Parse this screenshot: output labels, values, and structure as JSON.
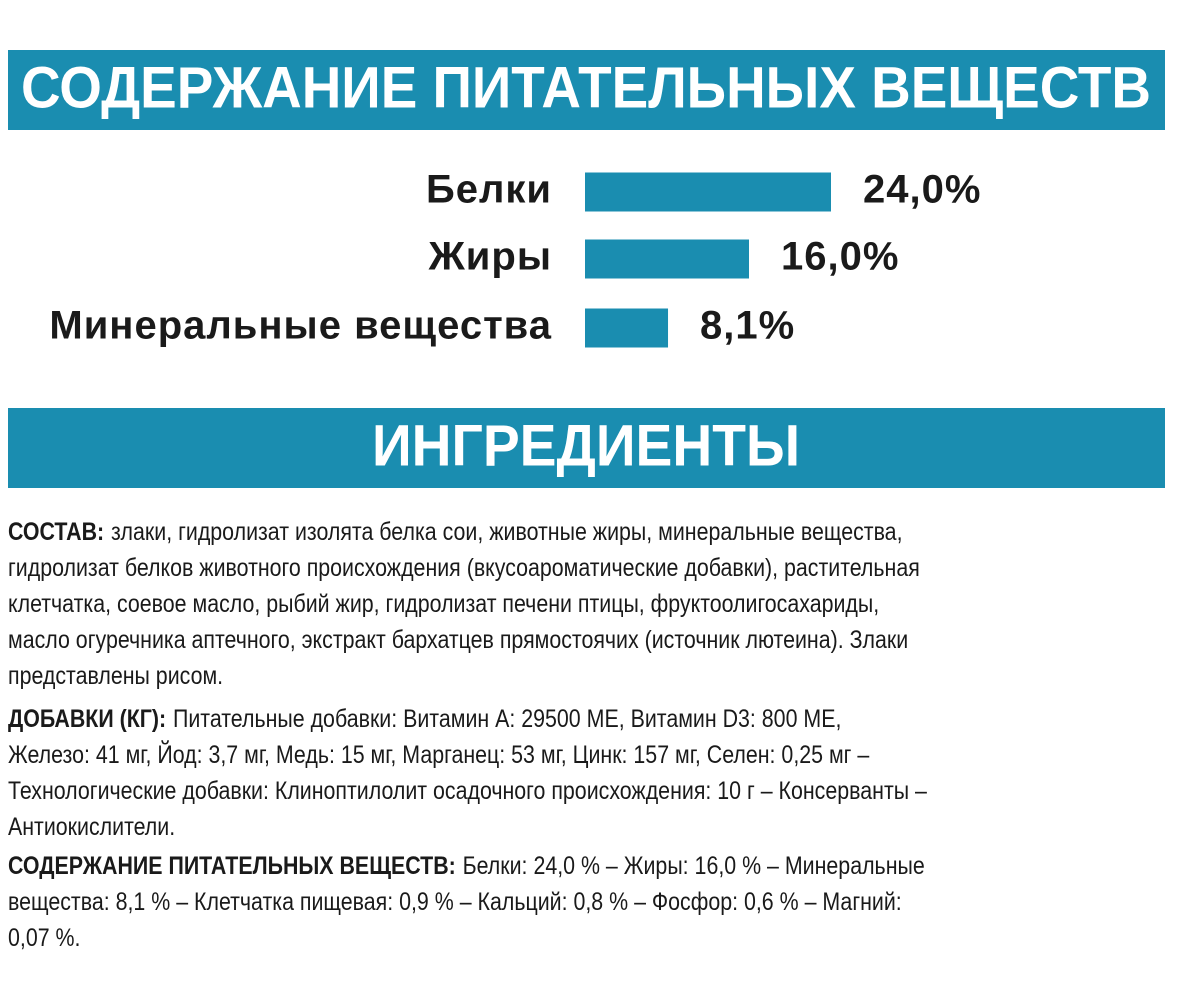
{
  "chart_data": {
    "type": "bar",
    "title": "СОДЕРЖАНИЕ ПИТАТЕЛЬНЫХ ВЕЩЕСТВ",
    "categories": [
      "Белки",
      "Жиры",
      "Минеральные вещества"
    ],
    "values": [
      24.0,
      16.0,
      8.1
    ],
    "value_labels": [
      "24,0%",
      "16,0%",
      "8,1%"
    ],
    "color": "#1a8db0"
  },
  "ingredients": {
    "title": "ИНГРЕДИЕНТЫ",
    "paragraphs": [
      {
        "label": "СОСТАВ:",
        "lines": [
          "злаки, гидролизат изолята белка сои, животные жиры, минеральные вещества,",
          "гидролизат белков животного происхождения (вкусоароматические добавки), растительная",
          "клетчатка, соевое масло, рыбий жир, гидролизат печени птицы, фруктоолигосахариды,",
          "масло огуречника аптечного, экстракт бархатцев прямостоячих (источник лютеина). Злаки",
          "представлены рисом."
        ]
      },
      {
        "label": "ДОБАВКИ (КГ):",
        "lines": [
          "Питательные добавки: Витамин A: 29500 МЕ, Витамин D3: 800 МЕ,",
          "Железо: 41 мг, Йод: 3,7 мг, Медь: 15 мг, Марганец: 53 мг, Цинк: 157 мг, Селен: 0,25 мг –",
          "Технологические добавки: Клиноптилолит осадочного происхождения: 10 г – Консерванты –",
          "Антиокислители."
        ]
      },
      {
        "label": "СОДЕРЖАНИЕ ПИТАТЕЛЬНЫХ ВЕЩЕСТВ:",
        "lines": [
          "Белки: 24,0 % – Жиры: 16,0 % – Минеральные",
          "вещества: 8,1 % – Клетчатка пищевая: 0,9 % – Кальций: 0,8 % – Фосфор: 0,6 % – Магний:",
          "0,07 %."
        ]
      }
    ]
  }
}
